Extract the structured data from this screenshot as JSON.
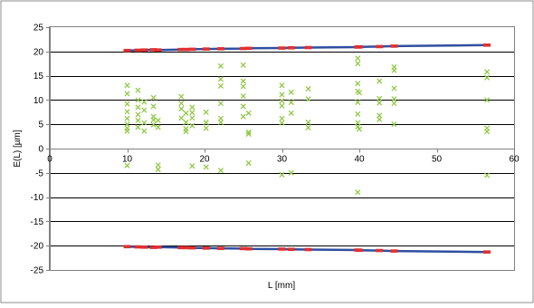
{
  "chart_data": {
    "type": "scatter",
    "title": "",
    "xlabel": "L [mm]",
    "ylabel": "E(L) [µm]",
    "xlim": [
      0,
      60
    ],
    "ylim": [
      -25,
      25
    ],
    "x_ticks": [
      0,
      10,
      20,
      30,
      40,
      50,
      60
    ],
    "y_ticks": [
      -25,
      -20,
      -15,
      -10,
      -5,
      0,
      5,
      10,
      15,
      20,
      25
    ],
    "grid": "horizontal",
    "legend": "none",
    "colors": {
      "limit_line": "#2f4fa0",
      "limit_marker": "#e03030",
      "measurement": "#8cc63f",
      "gridline": "#000000"
    },
    "series": [
      {
        "kind": "measurements",
        "marker": "x",
        "points": [
          [
            10,
            13
          ],
          [
            10,
            11.3
          ],
          [
            10,
            9.2
          ],
          [
            10,
            7.6
          ],
          [
            10,
            6.2
          ],
          [
            10,
            5
          ],
          [
            10,
            4.2
          ],
          [
            10,
            3.6
          ],
          [
            10,
            -3.5
          ],
          [
            11.4,
            12
          ],
          [
            11.4,
            10
          ],
          [
            11.4,
            8.5
          ],
          [
            11.4,
            7
          ],
          [
            11.4,
            5.8
          ],
          [
            11.4,
            4.4
          ],
          [
            12.2,
            9.6
          ],
          [
            12.2,
            7.9
          ],
          [
            12.2,
            5.3
          ],
          [
            12.2,
            3.6
          ],
          [
            13.4,
            10.5
          ],
          [
            13.4,
            8.7
          ],
          [
            13.4,
            6.6
          ],
          [
            13.4,
            5.9
          ],
          [
            13.4,
            4.9
          ],
          [
            14,
            5.8
          ],
          [
            14,
            4.4
          ],
          [
            14,
            -3.4
          ],
          [
            14,
            -4.3
          ],
          [
            17,
            10.7
          ],
          [
            17,
            9.3
          ],
          [
            17,
            8.2
          ],
          [
            17,
            6.3
          ],
          [
            17.6,
            7.3
          ],
          [
            17.6,
            5.4
          ],
          [
            17.6,
            4.1
          ],
          [
            17.6,
            3.5
          ],
          [
            18.4,
            8.5
          ],
          [
            18.4,
            7.4
          ],
          [
            18.4,
            6.3
          ],
          [
            18.4,
            4.7
          ],
          [
            18.4,
            -3.6
          ],
          [
            20.2,
            7.5
          ],
          [
            20.2,
            5.4
          ],
          [
            20.2,
            4.2
          ],
          [
            20.2,
            -3.8
          ],
          [
            22.1,
            17
          ],
          [
            22.1,
            14.3
          ],
          [
            22.1,
            12.9
          ],
          [
            22.1,
            9.3
          ],
          [
            22.1,
            6.2
          ],
          [
            22.1,
            5.4
          ],
          [
            22.1,
            -4.5
          ],
          [
            25,
            17.2
          ],
          [
            25,
            13.9
          ],
          [
            25,
            12.8
          ],
          [
            25,
            10.8
          ],
          [
            25,
            8.7
          ],
          [
            25,
            6.6
          ],
          [
            25.7,
            7.3
          ],
          [
            25.7,
            3.4
          ],
          [
            25.7,
            3
          ],
          [
            25.7,
            -3
          ],
          [
            30,
            13
          ],
          [
            30,
            11.1
          ],
          [
            30,
            9.8
          ],
          [
            30,
            8.8
          ],
          [
            30,
            6.2
          ],
          [
            30,
            5.3
          ],
          [
            30,
            -5.4
          ],
          [
            31.2,
            11.6
          ],
          [
            31.2,
            9.5
          ],
          [
            31.2,
            7.3
          ],
          [
            31.2,
            -5
          ],
          [
            33.4,
            12.3
          ],
          [
            33.4,
            10.2
          ],
          [
            33.4,
            5.4
          ],
          [
            33.4,
            4.3
          ],
          [
            39.8,
            18.6
          ],
          [
            39.8,
            17.5
          ],
          [
            39.8,
            13.4
          ],
          [
            39.8,
            11.8
          ],
          [
            39.8,
            9.5
          ],
          [
            39.8,
            7.1
          ],
          [
            39.8,
            5.3
          ],
          [
            39.8,
            4.5
          ],
          [
            39.8,
            -9
          ],
          [
            40,
            11.5
          ],
          [
            40,
            4
          ],
          [
            42.6,
            13.9
          ],
          [
            42.6,
            10.3
          ],
          [
            42.6,
            9.4
          ],
          [
            42.6,
            6.8
          ],
          [
            42.6,
            6
          ],
          [
            44.5,
            16.8
          ],
          [
            44.5,
            16.1
          ],
          [
            44.5,
            12.4
          ],
          [
            44.5,
            10.2
          ],
          [
            44.5,
            9.3
          ],
          [
            44.5,
            5
          ],
          [
            56.5,
            15.8
          ],
          [
            56.5,
            14.6
          ],
          [
            56.5,
            10
          ],
          [
            56.5,
            4.2
          ],
          [
            56.5,
            3.5
          ],
          [
            56.5,
            -5.5
          ]
        ]
      },
      {
        "kind": "upper_limit",
        "marker": "dash",
        "points": [
          [
            10,
            20.2
          ],
          [
            11.4,
            20.25
          ],
          [
            12.2,
            20.3
          ],
          [
            13.4,
            20.35
          ],
          [
            14,
            20.3
          ],
          [
            17,
            20.4
          ],
          [
            17.6,
            20.4
          ],
          [
            18.4,
            20.45
          ],
          [
            20.2,
            20.5
          ],
          [
            22.1,
            20.55
          ],
          [
            25,
            20.6
          ],
          [
            25.7,
            20.65
          ],
          [
            30,
            20.7
          ],
          [
            31.2,
            20.75
          ],
          [
            33.4,
            20.8
          ],
          [
            39.8,
            20.9
          ],
          [
            40,
            20.95
          ],
          [
            42.6,
            21
          ],
          [
            44.5,
            21.1
          ],
          [
            56.5,
            21.3
          ]
        ]
      },
      {
        "kind": "lower_limit",
        "marker": "dash",
        "points": [
          [
            10,
            -20.2
          ],
          [
            11.4,
            -20.25
          ],
          [
            12.2,
            -20.3
          ],
          [
            13.4,
            -20.35
          ],
          [
            14,
            -20.3
          ],
          [
            17,
            -20.4
          ],
          [
            17.6,
            -20.4
          ],
          [
            18.4,
            -20.45
          ],
          [
            20.2,
            -20.5
          ],
          [
            22.1,
            -20.55
          ],
          [
            25,
            -20.6
          ],
          [
            25.7,
            -20.65
          ],
          [
            30,
            -20.7
          ],
          [
            31.2,
            -20.75
          ],
          [
            33.4,
            -20.8
          ],
          [
            39.8,
            -20.9
          ],
          [
            40,
            -20.95
          ],
          [
            42.6,
            -21
          ],
          [
            44.5,
            -21.1
          ],
          [
            56.5,
            -21.3
          ]
        ]
      }
    ]
  }
}
